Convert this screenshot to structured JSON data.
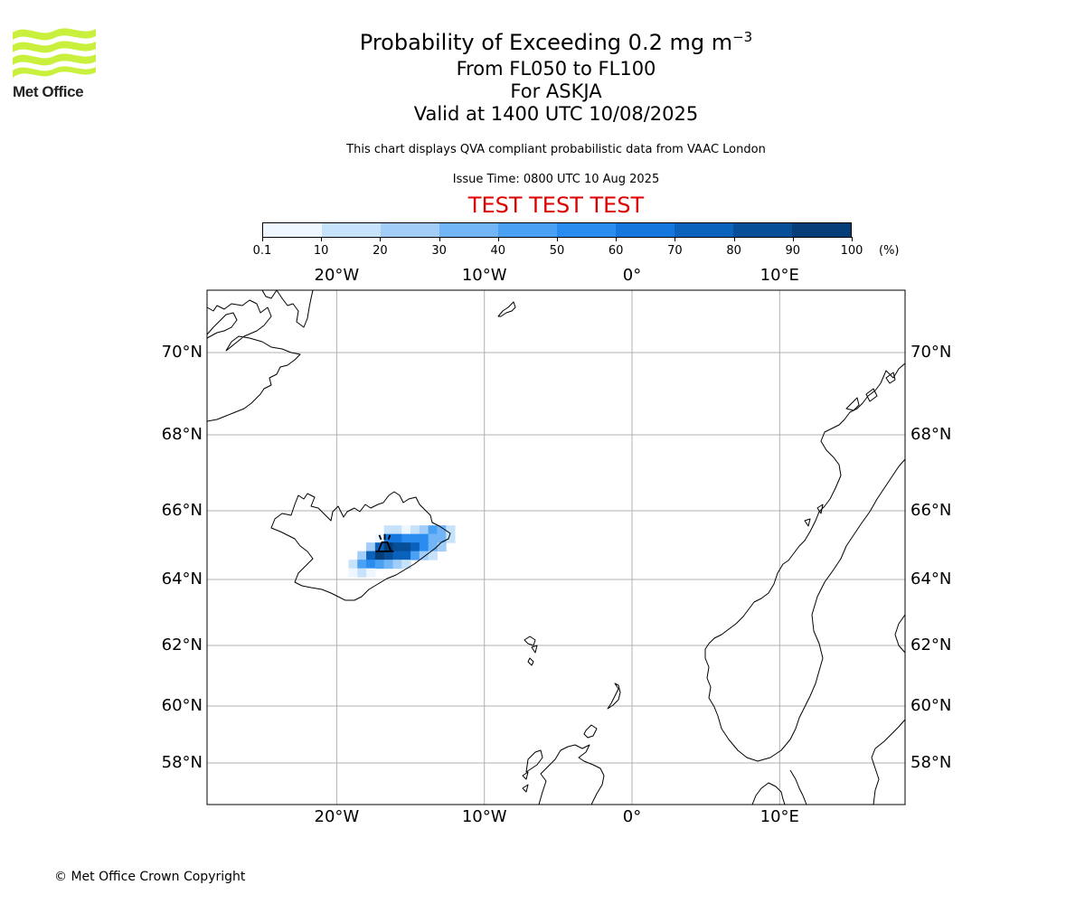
{
  "logo": {
    "text": "Met Office",
    "color": "#c8f03c"
  },
  "title": {
    "main": "Probability of Exceeding 0.2 mg m",
    "main_sup": "−3",
    "levels": "From FL050 to FL100",
    "volcano": "For ASKJA",
    "valid": "Valid at 1400 UTC 10/08/2025"
  },
  "subtitle": "This chart displays QVA compliant probabilistic data from VAAC London",
  "issue_time": "Issue Time: 0800 UTC 10 Aug 2025",
  "banner": {
    "text": "TEST TEST TEST",
    "color": "#dd0000"
  },
  "colorbar": {
    "ticks": [
      "0.1",
      "10",
      "20",
      "30",
      "40",
      "50",
      "60",
      "70",
      "80",
      "90",
      "100"
    ],
    "unit": "(%)",
    "colors": [
      "#eef6ff",
      "#c7e2fb",
      "#a1cdf8",
      "#72b5f6",
      "#4aa1f4",
      "#2a8cef",
      "#1576de",
      "#0a62bd",
      "#064f98",
      "#043d78",
      "#022c59"
    ]
  },
  "map": {
    "lon_ticks": [
      "20°W",
      "10°W",
      "0°",
      "10°E"
    ],
    "lat_ticks": [
      "70°N",
      "68°N",
      "66°N",
      "64°N",
      "62°N",
      "60°N",
      "58°N"
    ],
    "lon_values": [
      -20,
      -10,
      0,
      10
    ],
    "lat_values": [
      70,
      68,
      66,
      64,
      62,
      60,
      58
    ],
    "extent": {
      "lon_min": -28.8,
      "lon_max": 18.5,
      "lat_min": 56.8,
      "lat_max": 71.5
    },
    "volcano": {
      "name": "Askja",
      "lat": 65.03,
      "lon": -16.75,
      "icon": "volcano-icon"
    },
    "probability_cells": [
      {
        "lat": 65.45,
        "lon": -16.5,
        "p": 12
      },
      {
        "lat": 65.45,
        "lon": -15.9,
        "p": 15
      },
      {
        "lat": 65.45,
        "lon": -15.3,
        "p": 8
      },
      {
        "lat": 65.45,
        "lon": -14.7,
        "p": 10
      },
      {
        "lat": 65.45,
        "lon": -14.1,
        "p": 25
      },
      {
        "lat": 65.45,
        "lon": -13.5,
        "p": 45
      },
      {
        "lat": 65.45,
        "lon": -12.9,
        "p": 35
      },
      {
        "lat": 65.45,
        "lon": -12.3,
        "p": 15
      },
      {
        "lat": 65.2,
        "lon": -17.1,
        "p": 8
      },
      {
        "lat": 65.2,
        "lon": -16.5,
        "p": 60
      },
      {
        "lat": 65.2,
        "lon": -15.9,
        "p": 60
      },
      {
        "lat": 65.2,
        "lon": -15.3,
        "p": 55
      },
      {
        "lat": 65.2,
        "lon": -14.7,
        "p": 55
      },
      {
        "lat": 65.2,
        "lon": -14.1,
        "p": 55
      },
      {
        "lat": 65.2,
        "lon": -13.5,
        "p": 35
      },
      {
        "lat": 65.2,
        "lon": -12.9,
        "p": 30
      },
      {
        "lat": 65.2,
        "lon": -12.3,
        "p": 15
      },
      {
        "lat": 64.95,
        "lon": -17.7,
        "p": 20
      },
      {
        "lat": 64.95,
        "lon": -17.1,
        "p": 70
      },
      {
        "lat": 64.95,
        "lon": -16.5,
        "p": 95
      },
      {
        "lat": 64.95,
        "lon": -15.9,
        "p": 85
      },
      {
        "lat": 64.95,
        "lon": -15.3,
        "p": 85
      },
      {
        "lat": 64.95,
        "lon": -14.7,
        "p": 75
      },
      {
        "lat": 64.95,
        "lon": -14.1,
        "p": 55
      },
      {
        "lat": 64.95,
        "lon": -13.5,
        "p": 35
      },
      {
        "lat": 64.95,
        "lon": -12.9,
        "p": 25
      },
      {
        "lat": 64.7,
        "lon": -18.3,
        "p": 25
      },
      {
        "lat": 64.7,
        "lon": -17.7,
        "p": 75
      },
      {
        "lat": 64.7,
        "lon": -17.1,
        "p": 95
      },
      {
        "lat": 64.7,
        "lon": -16.5,
        "p": 85
      },
      {
        "lat": 64.7,
        "lon": -15.9,
        "p": 75
      },
      {
        "lat": 64.7,
        "lon": -15.3,
        "p": 70
      },
      {
        "lat": 64.7,
        "lon": -14.7,
        "p": 45
      },
      {
        "lat": 64.7,
        "lon": -14.1,
        "p": 25
      },
      {
        "lat": 64.7,
        "lon": -13.5,
        "p": 12
      },
      {
        "lat": 64.45,
        "lon": -18.9,
        "p": 15
      },
      {
        "lat": 64.45,
        "lon": -18.3,
        "p": 45
      },
      {
        "lat": 64.45,
        "lon": -17.7,
        "p": 55
      },
      {
        "lat": 64.45,
        "lon": -17.1,
        "p": 45
      },
      {
        "lat": 64.45,
        "lon": -16.5,
        "p": 35
      },
      {
        "lat": 64.45,
        "lon": -15.9,
        "p": 25
      },
      {
        "lat": 64.45,
        "lon": -15.3,
        "p": 15
      },
      {
        "lat": 64.2,
        "lon": -18.9,
        "p": 8
      },
      {
        "lat": 64.2,
        "lon": -18.3,
        "p": 12
      },
      {
        "lat": 64.2,
        "lon": -17.7,
        "p": 8
      }
    ]
  },
  "copyright": "© Met Office Crown Copyright"
}
